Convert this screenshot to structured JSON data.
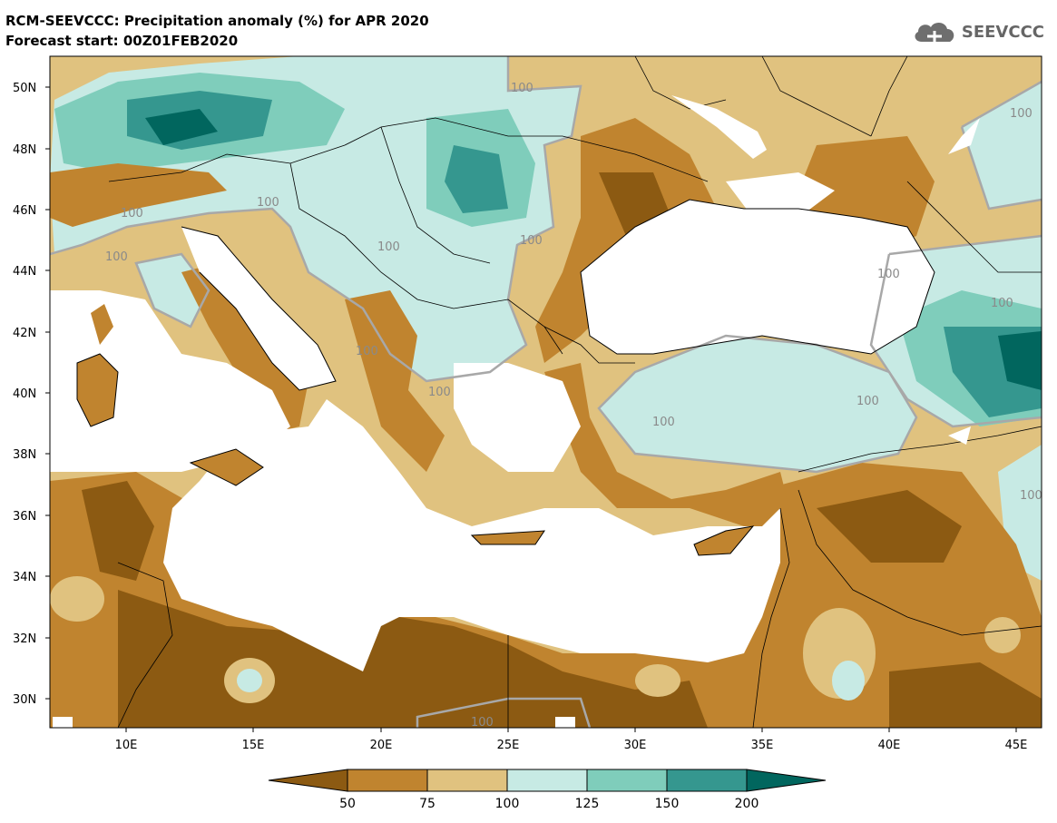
{
  "header": {
    "title_line1": "RCM-SEEVCCC: Precipitation anomaly (%) for APR 2020",
    "title_line2": "Forecast start: 00Z01FEB2020"
  },
  "logo": {
    "icon": "cloud-icon",
    "text": "SEEVCCC"
  },
  "map": {
    "lat_labels": [
      "50N",
      "48N",
      "46N",
      "44N",
      "42N",
      "40N",
      "38N",
      "36N",
      "34N",
      "32N",
      "30N"
    ],
    "lon_labels": [
      "10E",
      "15E",
      "20E",
      "25E",
      "30E",
      "35E",
      "40E",
      "45E"
    ],
    "contour_labels": [
      "100",
      "100",
      "100",
      "100",
      "100",
      "100",
      "100",
      "100",
      "100",
      "100",
      "100",
      "100",
      "100",
      "100",
      "100"
    ]
  },
  "colorbar": {
    "labels": [
      "50",
      "75",
      "100",
      "125",
      "150",
      "200"
    ],
    "colors": [
      "#8c5a12",
      "#c0842f",
      "#e0c27f",
      "#c7eae4",
      "#7fcdbb",
      "#35978f",
      "#01665e"
    ]
  },
  "palette": {
    "below50": "#8c5a12",
    "c50_75": "#c0842f",
    "c75_100": "#e0c27f",
    "c100_125": "#c7eae4",
    "c125_150": "#7fcdbb",
    "c150_200": "#35978f",
    "above200": "#01665e",
    "contour": "#a8a8a8"
  }
}
